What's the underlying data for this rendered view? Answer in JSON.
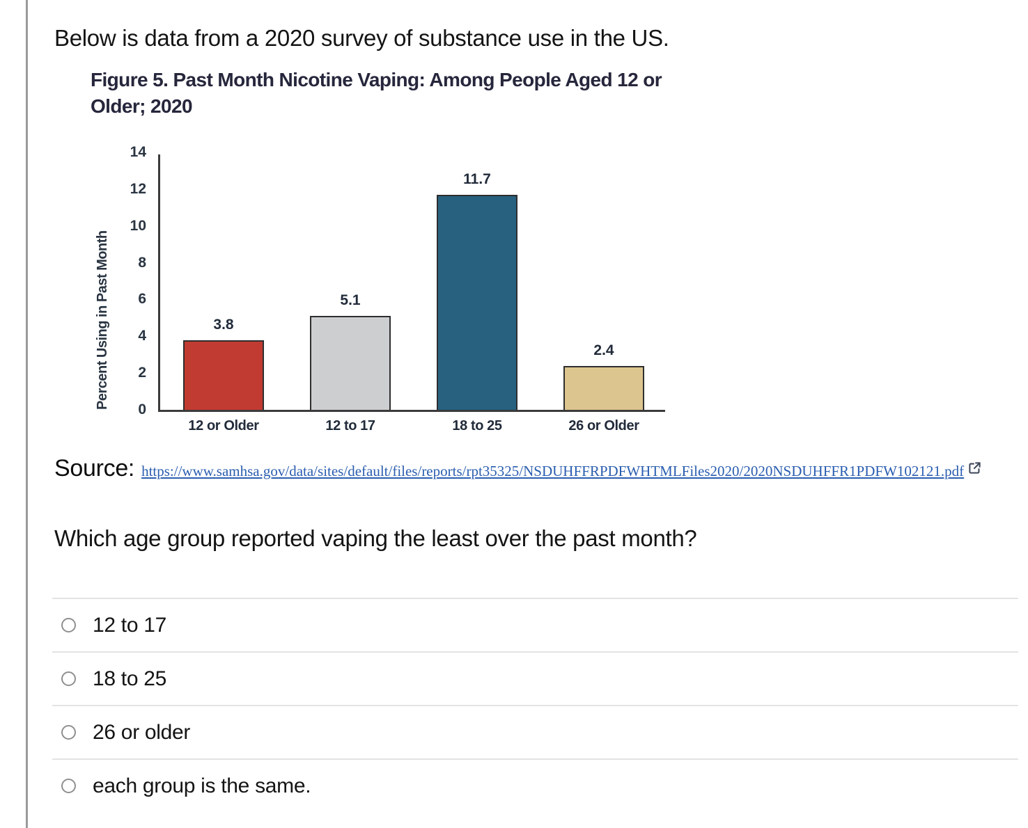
{
  "page": {
    "intro_heading": "Below is data from a 2020 survey of substance use in the US.",
    "question": "Which age group reported vaping the least over the past month?"
  },
  "figure": {
    "title": "Figure 5. Past Month Nicotine Vaping: Among People Aged 12 or Older; 2020"
  },
  "chart_data": {
    "type": "bar",
    "title": "Figure 5. Past Month Nicotine Vaping: Among People Aged 12 or Older; 2020",
    "categories": [
      "12 or Older",
      "12 to 17",
      "18 to 25",
      "26 or Older"
    ],
    "values": [
      3.8,
      5.1,
      11.7,
      2.4
    ],
    "data_labels": [
      "3.8",
      "5.1",
      "11.7",
      "2.4"
    ],
    "bar_colors": [
      "#c23b32",
      "#cdced0",
      "#27617f",
      "#ddc58f"
    ],
    "bar_border_color": "#2e2e2e",
    "xlabel": "",
    "ylabel": "Percent Using in Past Month",
    "ylim": [
      0,
      14
    ],
    "yticks": [
      0,
      2,
      4,
      6,
      8,
      10,
      12,
      14
    ],
    "grid": false,
    "legend": false
  },
  "source": {
    "label": "Source:",
    "link_text": "https://www.samhsa.gov/data/sites/default/files/reports/rpt35325/NSDUHFFRPDFWHTMLFiles2020/2020NSDUHFFR1PDFW102121.pdf",
    "external_icon": "external-link-icon"
  },
  "options": [
    {
      "label": "12 to 17"
    },
    {
      "label": "18 to 25"
    },
    {
      "label": "26 or older"
    },
    {
      "label": "each group is the same."
    }
  ],
  "colors": {
    "link_blue": "#2a5db0",
    "divider_gray": "#e3e3e3",
    "left_rule_gray": "#9b9b9b",
    "axis_dark": "#3b3b3b",
    "figure_text": "#26263c"
  }
}
